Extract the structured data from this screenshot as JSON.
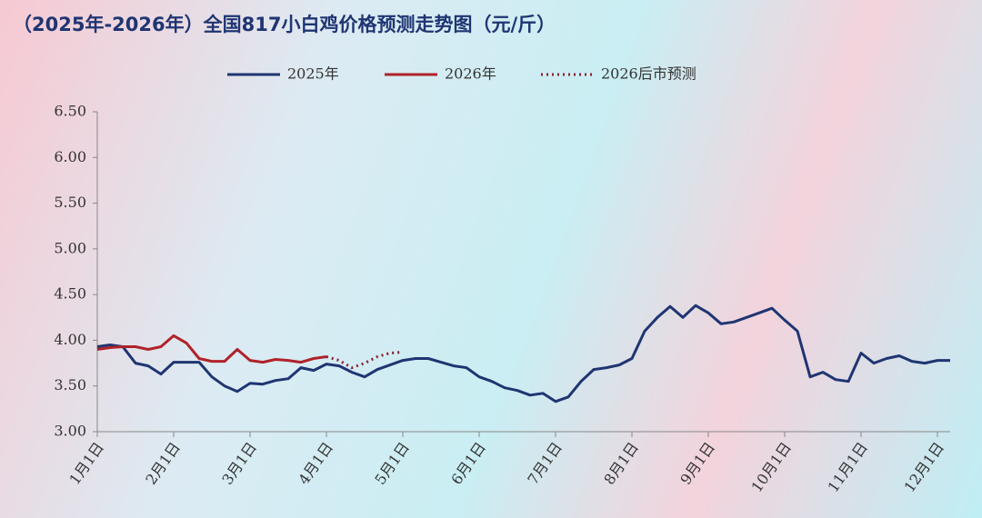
{
  "chart_data": {
    "type": "line",
    "title": "（2025年-2026年）全国817小白鸡价格预测走势图（元/斤）",
    "categories": [
      "1月1日",
      null,
      null,
      null,
      null,
      null,
      "2月1日",
      null,
      null,
      null,
      null,
      null,
      "3月1日",
      null,
      null,
      null,
      null,
      null,
      "4月1日",
      null,
      null,
      null,
      null,
      null,
      "5月1日",
      null,
      null,
      null,
      null,
      null,
      "6月1日",
      null,
      null,
      null,
      null,
      null,
      "7月1日",
      null,
      null,
      null,
      null,
      null,
      "8月1日",
      null,
      null,
      null,
      null,
      null,
      "9月1日",
      null,
      null,
      null,
      null,
      null,
      "10月1日",
      null,
      null,
      null,
      null,
      null,
      "11月1日",
      null,
      null,
      null,
      null,
      null,
      "12月1日",
      null
    ],
    "series": [
      {
        "name": "2025年",
        "color": "#1f3572",
        "style": "solid",
        "values": [
          3.93,
          3.95,
          3.93,
          3.75,
          3.72,
          3.63,
          3.76,
          3.76,
          3.76,
          3.6,
          3.5,
          3.44,
          3.53,
          3.52,
          3.56,
          3.58,
          3.7,
          3.67,
          3.74,
          3.72,
          3.65,
          3.6,
          3.68,
          3.73,
          3.78,
          3.8,
          3.8,
          3.76,
          3.72,
          3.7,
          3.6,
          3.55,
          3.48,
          3.45,
          3.4,
          3.42,
          3.33,
          3.38,
          3.55,
          3.68,
          3.7,
          3.73,
          3.8,
          4.1,
          4.25,
          4.37,
          4.25,
          4.38,
          4.3,
          4.18,
          4.2,
          4.25,
          4.3,
          4.35,
          4.22,
          4.1,
          3.6,
          3.65,
          3.57,
          3.55,
          3.86,
          3.75,
          3.8,
          3.83,
          3.77,
          3.75,
          3.78,
          3.78
        ]
      },
      {
        "name": "2026年",
        "color": "#b0222a",
        "style": "solid",
        "values": [
          3.9,
          3.92,
          3.93,
          3.93,
          3.9,
          3.93,
          4.05,
          3.97,
          3.8,
          3.77,
          3.77,
          3.9,
          3.78,
          3.76,
          3.79,
          3.78,
          3.76,
          3.8,
          3.82,
          null,
          null,
          null,
          null,
          null,
          null,
          null,
          null,
          null,
          null,
          null,
          null,
          null,
          null,
          null,
          null,
          null,
          null,
          null,
          null,
          null,
          null,
          null,
          null,
          null,
          null,
          null,
          null,
          null,
          null,
          null,
          null,
          null,
          null,
          null,
          null,
          null,
          null,
          null,
          null,
          null,
          null,
          null,
          null,
          null,
          null,
          null,
          null,
          null
        ]
      },
      {
        "name": "2026后市预测",
        "color": "#8b2030",
        "style": "dotted",
        "values": [
          null,
          null,
          null,
          null,
          null,
          null,
          null,
          null,
          null,
          null,
          null,
          null,
          null,
          null,
          null,
          null,
          null,
          null,
          3.82,
          3.78,
          3.7,
          3.75,
          3.82,
          3.86,
          3.87,
          null,
          null,
          null,
          null,
          null,
          null,
          null,
          null,
          null,
          null,
          null,
          null,
          null,
          null,
          null,
          null,
          null,
          null,
          null,
          null,
          null,
          null,
          null,
          null,
          null,
          null,
          null,
          null,
          null,
          null,
          null,
          null,
          null,
          null,
          null,
          null,
          null,
          null,
          null,
          null,
          null,
          null,
          null
        ]
      }
    ],
    "ylim": [
      3,
      6.5
    ],
    "yticks": [
      {
        "value": 3,
        "label": "3.00"
      },
      {
        "value": 3.5,
        "label": "3.50"
      },
      {
        "value": 4,
        "label": "4.00"
      },
      {
        "value": 4.5,
        "label": "4.50"
      },
      {
        "value": 5,
        "label": "5.00"
      },
      {
        "value": 5.5,
        "label": "5.50"
      },
      {
        "value": 6,
        "label": "6.00"
      },
      {
        "value": 6.5,
        "label": "6.50"
      }
    ],
    "grid": false
  }
}
